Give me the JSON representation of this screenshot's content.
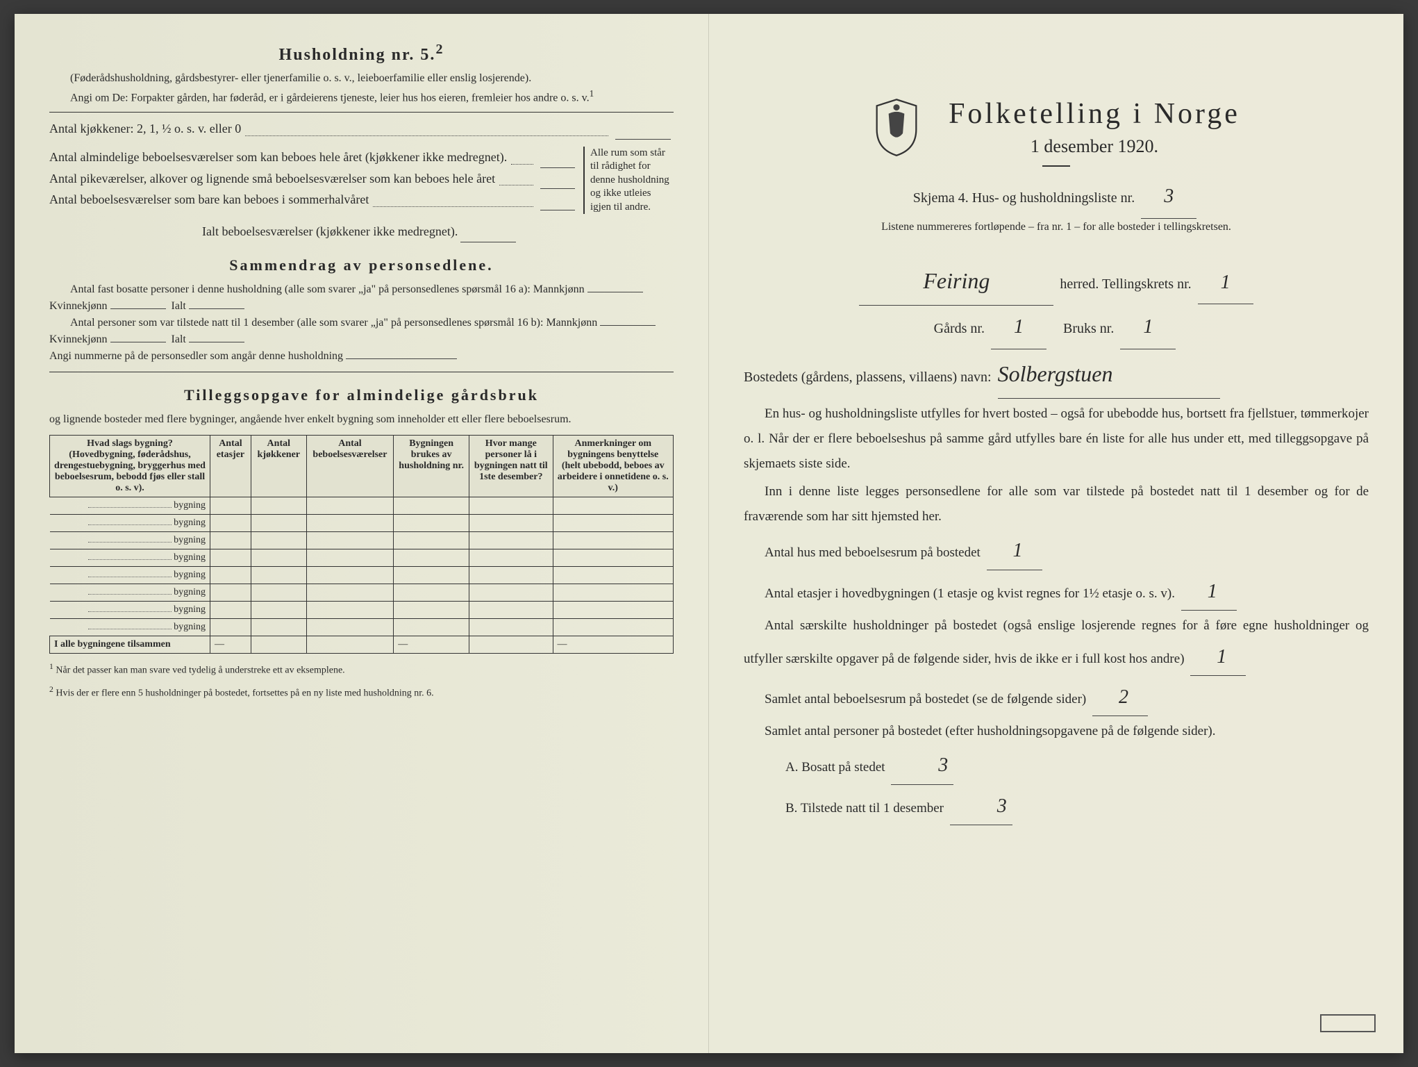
{
  "left": {
    "title": "Husholdning nr. 5.",
    "title_sup": "2",
    "intro1": "(Føderådshusholdning, gårdsbestyrer- eller tjenerfamilie o. s. v., leieboerfamilie eller enslig losjerende).",
    "intro2": "Angi om De: Forpakter gården, har føderåd, er i gårdeierens tjeneste, leier hus hos eieren, fremleier hos andre o. s. v.",
    "intro2_sup": "1",
    "kitchen_line": "Antal kjøkkener: 2, 1, ½ o. s. v. eller 0",
    "rooms": [
      "Antal almindelige beboelsesværelser som kan beboes hele året (kjøkkener ikke medregnet).",
      "Antal pikeværelser, alkover og lignende små beboelsesværelser som kan beboes hele året",
      "Antal beboelsesværelser som bare kan beboes i sommerhalvåret"
    ],
    "bracket_note": "Alle rum som står til rådighet for denne husholdning og ikke utleies igjen til andre.",
    "rooms_total": "Ialt beboelsesværelser (kjøkkener ikke medregnet).",
    "summary_title": "Sammendrag av personsedlene.",
    "summary1a": "Antal fast bosatte personer i denne husholdning (alle som svarer „ja\" på personsedlenes spørsmål 16 a): Mannkjønn",
    "summary1b": "Kvinnekjønn",
    "summary1c": "Ialt",
    "summary2a": "Antal personer som var tilstede natt til 1 desember (alle som svarer „ja\" på personsedlenes spørsmål 16 b): Mannkjønn",
    "summary3": "Angi nummerne på de personsedler som angår denne husholdning",
    "tillegg_title": "Tilleggsopgave for almindelige gårdsbruk",
    "tillegg_sub": "og lignende bosteder med flere bygninger, angående hver enkelt bygning som inneholder ett eller flere beboelsesrum.",
    "table": {
      "headers": [
        "Hvad slags bygning?\n(Hovedbygning, føderådshus, drengestuebygning, bryggerhus med beboelsesrum, bebodd fjøs eller stall o. s. v).",
        "Antal etasjer",
        "Antal kjøkkener",
        "Antal beboelsesværelser",
        "Bygningen brukes av husholdning nr.",
        "Hvor mange personer lå i bygningen natt til 1ste desember?",
        "Anmerkninger om bygningens benyttelse (helt ubebodd, beboes av arbeidere i onnetidene o. s. v.)"
      ],
      "row_label": "bygning",
      "row_count": 8,
      "total_label": "I alle bygningene tilsammen"
    },
    "footnotes": [
      "Når det passer kan man svare ved tydelig å understreke ett av eksemplene.",
      "Hvis der er flere enn 5 husholdninger på bostedet, fortsettes på en ny liste med husholdning nr. 6."
    ]
  },
  "right": {
    "main_title": "Folketelling i Norge",
    "sub_title": "1 desember 1920.",
    "skjema": "Skjema 4.  Hus- og husholdningsliste nr.",
    "skjema_val": "3",
    "liste_note": "Listene nummereres fortløpende – fra nr. 1 – for alle bosteder i tellingskretsen.",
    "herred_val": "Feiring",
    "herred_lbl": "herred.  Tellingskrets nr.",
    "krets_val": "1",
    "gards_lbl": "Gårds nr.",
    "gards_val": "1",
    "bruks_lbl": "Bruks nr.",
    "bruks_val": "1",
    "bosted_lbl": "Bostedets (gårdens, plassens, villaens) navn:",
    "bosted_val": "Solbergstuen",
    "para1": "En hus- og husholdningsliste utfylles for hvert bosted – også for ubebodde hus, bortsett fra fjellstuer, tømmerkojer o. l.  Når der er flere beboelseshus på samme gård utfylles bare én liste for alle hus under ett, med tilleggsopgave på skjemaets siste side.",
    "para2": "Inn i denne liste legges personsedlene for alle som var tilstede på bostedet natt til 1 desember og for de fraværende som har sitt hjemsted her.",
    "q1": "Antal hus med beboelsesrum på bostedet",
    "q1_val": "1",
    "q2a": "Antal etasjer i hovedbygningen (1 etasje og kvist regnes for 1½ etasje o. s. v).",
    "q2_val": "1",
    "q3": "Antal særskilte husholdninger på bostedet (også enslige losjerende regnes for å føre egne husholdninger og utfyller særskilte opgaver på de følgende sider, hvis de ikke er i full kost hos andre)",
    "q3_val": "1",
    "q4": "Samlet antal beboelsesrum på bostedet (se de følgende sider)",
    "q4_val": "2",
    "q5": "Samlet antal personer på bostedet (efter husholdningsopgavene på de følgende sider).",
    "qA": "A.  Bosatt på stedet",
    "qA_val": "3",
    "qB": "B.  Tilstede natt til 1 desember",
    "qB_val": "3"
  }
}
